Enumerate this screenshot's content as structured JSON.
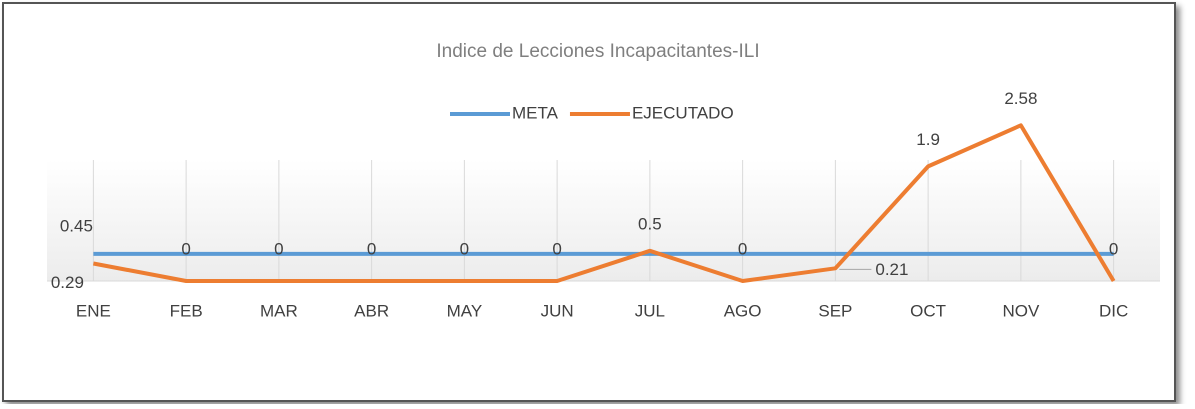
{
  "chart_data": {
    "type": "line",
    "title": "Indice de Lecciones Incapacitantes-ILI",
    "categories": [
      "ENE",
      "FEB",
      "MAR",
      "ABR",
      "MAY",
      "JUN",
      "JUL",
      "AGO",
      "SEP",
      "OCT",
      "NOV",
      "DIC"
    ],
    "series": [
      {
        "name": "META",
        "color": "#5b9bd5",
        "values": [
          0.45,
          0.45,
          0.45,
          0.45,
          0.45,
          0.45,
          0.45,
          0.45,
          0.45,
          0.45,
          0.45,
          0.45
        ],
        "value_labels": [
          "0.45",
          null,
          null,
          null,
          null,
          null,
          null,
          null,
          null,
          null,
          null,
          null
        ]
      },
      {
        "name": "EJECUTADO",
        "color": "#ed7d31",
        "values": [
          0.29,
          0,
          0,
          0,
          0,
          0,
          0.5,
          0,
          0.21,
          1.9,
          2.58,
          0
        ]
      }
    ],
    "ylim": [
      0,
      3
    ],
    "grid": true,
    "legend": "top"
  }
}
